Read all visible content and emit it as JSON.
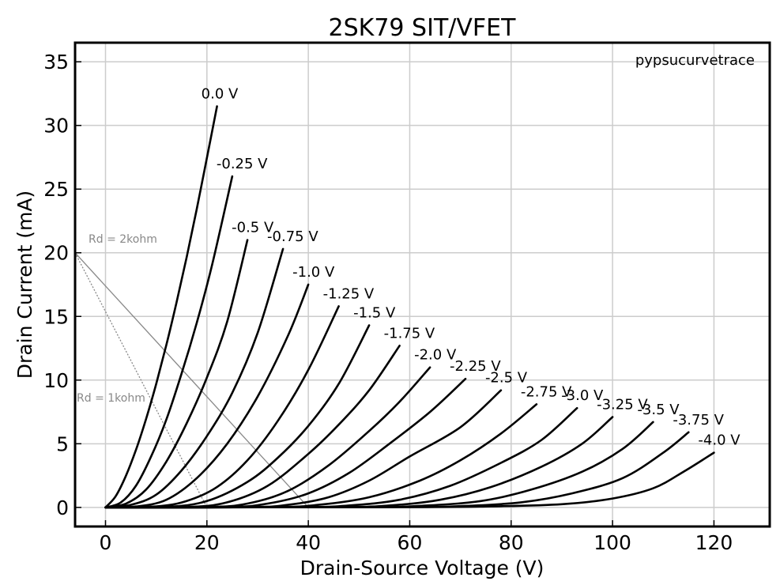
{
  "chart_data": {
    "type": "line",
    "title": "2SK79 SIT/VFET",
    "xlabel": "Drain-Source Voltage (V)",
    "ylabel": "Drain Current (mA)",
    "xlim": [
      -6,
      131
    ],
    "ylim": [
      -1.5,
      36.5
    ],
    "xticks": [
      0,
      20,
      40,
      60,
      80,
      100,
      120
    ],
    "yticks": [
      0,
      5,
      10,
      15,
      20,
      25,
      30,
      35
    ],
    "grid": true,
    "annotation": "pypsucurvetrace",
    "series": [
      {
        "name": "0.0 V",
        "x": [
          0,
          2,
          4,
          6,
          8,
          10,
          12,
          14,
          16,
          18,
          20,
          22
        ],
        "y": [
          0,
          0.87,
          2.46,
          4.51,
          6.94,
          9.71,
          12.76,
          16.08,
          19.65,
          23.44,
          27.45,
          31.5
        ]
      },
      {
        "name": "-0.25 V",
        "x": [
          0,
          3,
          6,
          9,
          12,
          15,
          18,
          21,
          25
        ],
        "y": [
          0,
          0.38,
          1.7,
          4.0,
          6.9,
          10.5,
          14.5,
          19.0,
          26.0
        ]
      },
      {
        "name": "-0.5 V",
        "x": [
          0,
          4,
          8,
          12,
          16,
          20,
          24,
          28
        ],
        "y": [
          0,
          0.29,
          1.4,
          3.6,
          6.6,
          10.2,
          14.6,
          21.0
        ]
      },
      {
        "name": "-0.75 V",
        "x": [
          0,
          5,
          10,
          15,
          20,
          25,
          30,
          35
        ],
        "y": [
          0,
          0.2,
          1.0,
          2.9,
          5.6,
          9.0,
          13.7,
          20.3
        ]
      },
      {
        "name": "-1.0 V",
        "x": [
          0,
          6,
          12,
          18,
          24,
          30,
          36,
          40
        ],
        "y": [
          0,
          0.07,
          0.6,
          2.3,
          5.0,
          8.7,
          13.5,
          17.5
        ]
      },
      {
        "name": "-1.25 V",
        "x": [
          0,
          10,
          16,
          22,
          28,
          34,
          40,
          46
        ],
        "y": [
          0,
          0.08,
          0.5,
          1.6,
          3.7,
          6.8,
          10.8,
          15.8
        ]
      },
      {
        "name": "-1.5 V",
        "x": [
          0,
          12,
          20,
          28,
          34,
          40,
          46,
          52
        ],
        "y": [
          0,
          0.04,
          0.5,
          2.0,
          3.9,
          6.4,
          9.7,
          14.3
        ]
      },
      {
        "name": "-1.75 V",
        "x": [
          0,
          16,
          24,
          32,
          40,
          46,
          52,
          58
        ],
        "y": [
          0,
          0.03,
          0.4,
          1.7,
          4.2,
          6.5,
          9.2,
          12.7
        ]
      },
      {
        "name": "-2.0 V",
        "x": [
          0,
          20,
          28,
          36,
          44,
          52,
          58,
          64
        ],
        "y": [
          0,
          0.02,
          0.3,
          1.3,
          3.3,
          6.0,
          8.3,
          11.0
        ]
      },
      {
        "name": "-2.25 V",
        "x": [
          0,
          24,
          32,
          40,
          48,
          56,
          64,
          71
        ],
        "y": [
          0,
          0.03,
          0.3,
          1.1,
          2.7,
          5.0,
          7.5,
          10.1
        ]
      },
      {
        "name": "-2.5 V",
        "x": [
          0,
          28,
          36,
          44,
          52,
          60,
          70,
          78
        ],
        "y": [
          0,
          0.02,
          0.2,
          0.8,
          2.1,
          4.0,
          6.3,
          9.2
        ]
      },
      {
        "name": "-2.75 V",
        "x": [
          0,
          32,
          42,
          52,
          62,
          70,
          78,
          85
        ],
        "y": [
          0,
          0.02,
          0.2,
          0.8,
          2.1,
          3.7,
          5.8,
          8.1
        ]
      },
      {
        "name": "-3.0 V",
        "x": [
          0,
          38,
          48,
          58,
          68,
          78,
          86,
          93
        ],
        "y": [
          0,
          0.02,
          0.15,
          0.6,
          1.7,
          3.5,
          5.3,
          7.8
        ]
      },
      {
        "name": "-3.25 V",
        "x": [
          0,
          44,
          56,
          66,
          76,
          86,
          94,
          100
        ],
        "y": [
          0,
          0.02,
          0.15,
          0.6,
          1.6,
          3.2,
          5.0,
          7.1
        ]
      },
      {
        "name": "-3.5 V",
        "x": [
          0,
          50,
          62,
          74,
          84,
          94,
          102,
          108
        ],
        "y": [
          0,
          0.02,
          0.12,
          0.5,
          1.4,
          2.8,
          4.6,
          6.7
        ]
      },
      {
        "name": "-3.75 V",
        "x": [
          0,
          56,
          70,
          82,
          92,
          102,
          110,
          115
        ],
        "y": [
          0,
          0.02,
          0.1,
          0.4,
          1.1,
          2.3,
          4.3,
          5.9
        ]
      },
      {
        "name": "-4.0 V",
        "x": [
          0,
          60,
          76,
          90,
          100,
          108,
          114,
          120
        ],
        "y": [
          0,
          0.02,
          0.08,
          0.25,
          0.7,
          1.5,
          2.8,
          4.3
        ]
      }
    ],
    "load_lines": [
      {
        "name": "Rd = 2kohm",
        "x": [
          -6,
          40
        ],
        "y": [
          20,
          0
        ]
      },
      {
        "name": "Rd = 1kohm",
        "x": [
          -6,
          20
        ],
        "y": [
          20,
          0
        ]
      }
    ]
  }
}
